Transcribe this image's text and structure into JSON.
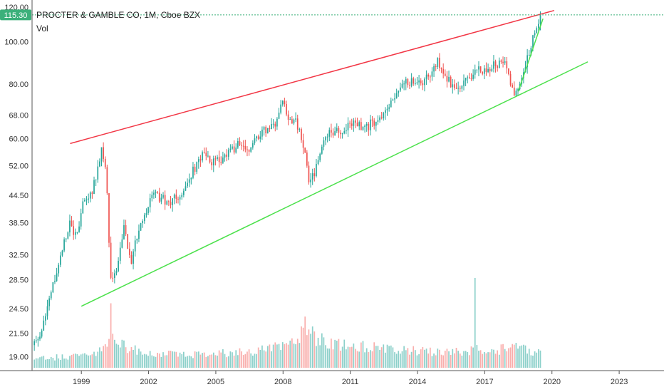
{
  "chart_data": {
    "type": "candlestick",
    "title": "PROCTER & GAMBLE CO, 1M, Cboe BZX",
    "volume_label": "Vol",
    "last_price": "115.30",
    "y_scale": "log",
    "ylim": [
      18.2,
      121
    ],
    "x_range": [
      1996.8,
      2025.0
    ],
    "y_ticks": [
      {
        "value": 19.0,
        "label": "19.00"
      },
      {
        "value": 21.5,
        "label": "21.50"
      },
      {
        "value": 24.5,
        "label": "24.50"
      },
      {
        "value": 28.5,
        "label": "28.50"
      },
      {
        "value": 32.5,
        "label": "32.50"
      },
      {
        "value": 38.5,
        "label": "38.50"
      },
      {
        "value": 44.5,
        "label": "44.50"
      },
      {
        "value": 52.0,
        "label": "52.00"
      },
      {
        "value": 60.0,
        "label": "60.00"
      },
      {
        "value": 68.0,
        "label": "68.00"
      },
      {
        "value": 80.0,
        "label": "80.00"
      },
      {
        "value": 100.0,
        "label": "100.00"
      },
      {
        "value": 120.0,
        "label": "120.00"
      }
    ],
    "x_ticks": [
      {
        "value": 1999,
        "label": "1999"
      },
      {
        "value": 2002,
        "label": "2002"
      },
      {
        "value": 2005,
        "label": "2005"
      },
      {
        "value": 2008,
        "label": "2008"
      },
      {
        "value": 2011,
        "label": "2011"
      },
      {
        "value": 2014,
        "label": "2014"
      },
      {
        "value": 2017,
        "label": "2017"
      },
      {
        "value": 2020,
        "label": "2020"
      },
      {
        "value": 2023,
        "label": "2023"
      }
    ],
    "price_anchors": [
      [
        1996.9,
        20.2
      ],
      [
        1997.3,
        22.5
      ],
      [
        1997.8,
        28.5
      ],
      [
        1998.1,
        33.5
      ],
      [
        1998.5,
        38.5
      ],
      [
        1998.8,
        35.5
      ],
      [
        1999.1,
        43.0
      ],
      [
        1999.5,
        46.0
      ],
      [
        1999.9,
        56.0
      ],
      [
        2000.1,
        52.0
      ],
      [
        2000.3,
        29.0
      ],
      [
        2000.6,
        30.5
      ],
      [
        2000.9,
        37.5
      ],
      [
        2001.2,
        31.0
      ],
      [
        2001.6,
        38.0
      ],
      [
        2001.9,
        41.0
      ],
      [
        2002.2,
        44.5
      ],
      [
        2002.6,
        44.0
      ],
      [
        2002.9,
        42.5
      ],
      [
        2003.2,
        44.0
      ],
      [
        2003.6,
        45.5
      ],
      [
        2004.0,
        51.0
      ],
      [
        2004.4,
        55.0
      ],
      [
        2004.8,
        53.0
      ],
      [
        2005.2,
        53.5
      ],
      [
        2005.6,
        55.5
      ],
      [
        2006.0,
        58.0
      ],
      [
        2006.4,
        56.0
      ],
      [
        2006.8,
        61.0
      ],
      [
        2007.2,
        62.5
      ],
      [
        2007.6,
        64.0
      ],
      [
        2007.9,
        73.0
      ],
      [
        2008.3,
        67.0
      ],
      [
        2008.6,
        65.0
      ],
      [
        2008.9,
        58.0
      ],
      [
        2009.2,
        47.0
      ],
      [
        2009.6,
        54.0
      ],
      [
        2009.9,
        60.5
      ],
      [
        2010.3,
        63.0
      ],
      [
        2010.6,
        60.5
      ],
      [
        2010.9,
        64.0
      ],
      [
        2011.3,
        65.0
      ],
      [
        2011.6,
        62.5
      ],
      [
        2011.9,
        65.0
      ],
      [
        2012.3,
        66.5
      ],
      [
        2012.7,
        69.0
      ],
      [
        2013.0,
        76.0
      ],
      [
        2013.4,
        80.0
      ],
      [
        2013.8,
        82.0
      ],
      [
        2014.2,
        80.5
      ],
      [
        2014.6,
        84.0
      ],
      [
        2014.9,
        91.0
      ],
      [
        2015.3,
        83.0
      ],
      [
        2015.6,
        77.5
      ],
      [
        2015.9,
        79.0
      ],
      [
        2016.3,
        82.0
      ],
      [
        2016.7,
        86.5
      ],
      [
        2016.9,
        84.0
      ],
      [
        2017.3,
        88.5
      ],
      [
        2017.6,
        89.5
      ],
      [
        2017.9,
        92.0
      ],
      [
        2018.1,
        84.0
      ],
      [
        2018.3,
        74.0
      ],
      [
        2018.6,
        80.0
      ],
      [
        2018.9,
        91.0
      ],
      [
        2019.1,
        99.0
      ],
      [
        2019.3,
        108.0
      ],
      [
        2019.5,
        115.3
      ]
    ],
    "volume_anchors": [
      [
        1996.9,
        1.1
      ],
      [
        1999.0,
        1.4
      ],
      [
        2000.1,
        2.4
      ],
      [
        2000.3,
        6.5
      ],
      [
        2000.6,
        3.0
      ],
      [
        2002.0,
        1.6
      ],
      [
        2004.0,
        1.5
      ],
      [
        2006.0,
        1.8
      ],
      [
        2007.5,
        2.2
      ],
      [
        2008.7,
        3.4
      ],
      [
        2008.9,
        5.8
      ],
      [
        2009.2,
        4.2
      ],
      [
        2009.8,
        3.0
      ],
      [
        2011.0,
        2.6
      ],
      [
        2012.5,
        2.2
      ],
      [
        2014.0,
        2.0
      ],
      [
        2015.5,
        1.8
      ],
      [
        2016.0,
        2.0
      ],
      [
        2016.6,
        2.2
      ],
      [
        2017.3,
        1.8
      ],
      [
        2018.2,
        2.6
      ],
      [
        2019.0,
        2.0
      ],
      [
        2019.5,
        1.6
      ]
    ],
    "volume_spike": {
      "x": 2016.6,
      "v": 10.5
    },
    "trendlines": [
      {
        "color": "#f23645",
        "from": [
          1998.5,
          58.5
        ],
        "to": [
          2020.1,
          118.0
        ]
      },
      {
        "color": "#4ce14c",
        "from": [
          1999.0,
          24.8
        ],
        "to": [
          2021.6,
          90.0
        ]
      },
      {
        "color": "#4ce14c",
        "from": [
          2018.5,
          77.0
        ],
        "to": [
          2019.6,
          113.0
        ]
      }
    ],
    "colors": {
      "up": "#26a69a",
      "down": "#ef5350",
      "up_volume": "#80cbc4",
      "down_volume": "#f8a5a3",
      "last_price_tag": "#3bb07a",
      "last_price_line": "#3bb07a"
    }
  }
}
